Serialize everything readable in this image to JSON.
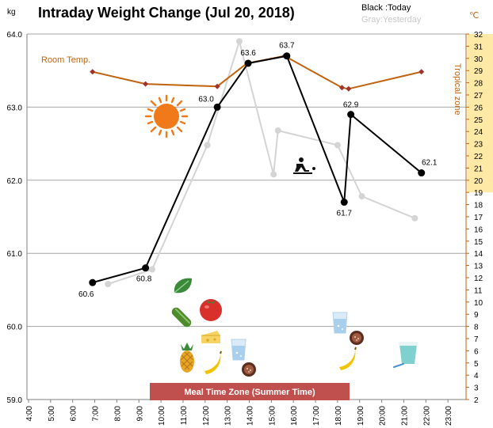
{
  "chart_data": {
    "type": "line",
    "title": "Intraday Weight Change (Jul 20, 2018)",
    "legend": {
      "today": "Black :Today",
      "yesterday": "Gray:Yesterday",
      "position": "top-right"
    },
    "y_unit": "kg",
    "y2_unit": "℃",
    "ylim": [
      59.0,
      64.0
    ],
    "y_ticks": [
      "59.0",
      "60.0",
      "61.0",
      "62.0",
      "63.0",
      "64.0"
    ],
    "y2lim": [
      2,
      32
    ],
    "y2_ticks": [
      "2",
      "3",
      "4",
      "5",
      "6",
      "7",
      "8",
      "9",
      "10",
      "11",
      "12",
      "13",
      "14",
      "15",
      "16",
      "17",
      "18",
      "19",
      "20",
      "21",
      "22",
      "23",
      "24",
      "25",
      "26",
      "27",
      "28",
      "29",
      "30",
      "31",
      "32"
    ],
    "x_ticks": [
      "4:00",
      "5:00",
      "6:00",
      "7:00",
      "8:00",
      "9:00",
      "10:00",
      "11:00",
      "12:00",
      "13:00",
      "14:00",
      "15:00",
      "16:00",
      "17:00",
      "18:00",
      "19:00",
      "20:00",
      "21:00",
      "22:00",
      "23:00"
    ],
    "grid": true,
    "series": [
      {
        "name": "Today",
        "color": "#000000",
        "x": [
          6.9,
          9.3,
          12.55,
          13.95,
          15.7,
          18.3,
          18.6,
          21.8
        ],
        "values": [
          60.6,
          60.8,
          63.0,
          63.6,
          63.7,
          61.7,
          62.9,
          62.1
        ],
        "labels": [
          "60.6",
          "60.8",
          "63.0",
          "63.6",
          "63.7",
          "61.7",
          "62.9",
          "62.1"
        ]
      },
      {
        "name": "Yesterday",
        "color": "#d4d4d4",
        "x": [
          7.6,
          9.6,
          12.1,
          13.55,
          15.1,
          15.3,
          18.0,
          19.1,
          21.5
        ],
        "values": [
          60.58,
          60.78,
          62.48,
          63.9,
          62.08,
          62.68,
          62.48,
          61.78,
          61.48
        ]
      },
      {
        "name": "Room Temp.",
        "axis": "right",
        "color": "#c0630f",
        "x": [
          6.9,
          9.3,
          12.55,
          13.9,
          15.6,
          18.2,
          18.5,
          21.8
        ],
        "values": [
          28.9,
          27.9,
          27.7,
          29.6,
          30.2,
          27.6,
          27.5,
          28.9
        ]
      }
    ],
    "annotations": {
      "room_temp": "Room Temp.",
      "tropical_zone": "Tropical zone",
      "tropical_range": [
        19,
        32
      ],
      "meal_zone": "Meal Time Zone  (Summer Time)"
    },
    "colors": {
      "tropical_band": "#ffe9a6",
      "meal_band": "#c0504d",
      "temp_line": "#c0630f",
      "temp_marker": "#a0322d",
      "gridline": "#a6a6a6"
    },
    "icons": [
      "sun-icon",
      "person-exercising-icon",
      "spinach-icon",
      "cucumber-icon",
      "tomato-icon",
      "pineapple-icon",
      "cheese-icon",
      "banana-icon",
      "glass-of-water-icon",
      "sausage-icon",
      "yogurt-icon"
    ]
  }
}
